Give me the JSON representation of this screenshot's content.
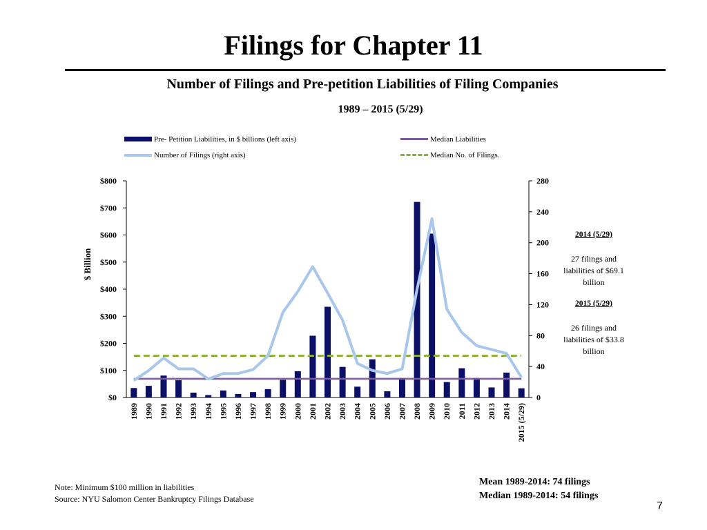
{
  "slide": {
    "title": "Filings for Chapter 11",
    "page_number": "7"
  },
  "legend": {
    "bars": "Pre- Petition Liabilities,  in $ billions  (left axis)",
    "filings": "Number of Filings  (right axis)",
    "median_liabilities": "Median Liabilities",
    "median_filings": "Median No. of Filings."
  },
  "notes": {
    "note": "Note:    Minimum $100 million in liabilities",
    "source": "Source: NYU Salomon Center Bankruptcy Filings Database"
  },
  "stats": {
    "mean": "Mean 1989-2014: 74 filings",
    "median": "Median 1989-2014: 54 filings"
  },
  "side_notes": {
    "head_2014": "2014 (5/29)",
    "body_2014": "27 filings and liabilities of $69.1 billion",
    "head_2015": "2015 (5/29)",
    "body_2015": "26 filings and liabilities of $33.8 billion"
  },
  "colors": {
    "bars": "#0b0f66",
    "filings_line": "#a8c7ea",
    "median_liabilities": "#7b5a9e",
    "median_filings": "#8db23c"
  },
  "chart_data": {
    "type": "bar",
    "title": "Number of Filings and Pre-petition Liabilities of Filing Companies",
    "subtitle": "1989 – 2015 (5/29)",
    "ylabel": "$ Billion",
    "ylabel_right": "",
    "ylim": [
      0,
      800
    ],
    "ylim_right": [
      0,
      280
    ],
    "yticks_left": [
      "$0",
      "$100",
      "$200",
      "$300",
      "$400",
      "$500",
      "$600",
      "$700",
      "$800"
    ],
    "yticks_right": [
      "0",
      "40",
      "80",
      "120",
      "160",
      "200",
      "240",
      "280"
    ],
    "categories": [
      "1989",
      "1990",
      "1991",
      "1992",
      "1993",
      "1994",
      "1995",
      "1996",
      "1997",
      "1998",
      "1999",
      "2000",
      "2001",
      "2002",
      "2003",
      "2004",
      "2005",
      "2006",
      "2007",
      "2008",
      "2009",
      "2010",
      "2011",
      "2012",
      "2013",
      "2014",
      "2015 (5/29)"
    ],
    "series": [
      {
        "name": "Pre- Petition Liabilities,  in $ billions  (left axis)",
        "kind": "bar",
        "axis": "left",
        "values": [
          35,
          43,
          81,
          64,
          18,
          9,
          26,
          13,
          20,
          31,
          65,
          97,
          228,
          335,
          113,
          40,
          141,
          23,
          72,
          722,
          605,
          57,
          108,
          72,
          37,
          92,
          34
        ]
      },
      {
        "name": "Number of Filings  (right axis)",
        "kind": "line",
        "axis": "right",
        "values": [
          22,
          35,
          51,
          37,
          37,
          24,
          31,
          31,
          36,
          54,
          110,
          137,
          169,
          135,
          100,
          44,
          35,
          31,
          37,
          140,
          231,
          114,
          84,
          67,
          62,
          57,
          26
        ]
      },
      {
        "name": "Median Liabilities",
        "kind": "hline",
        "axis": "left",
        "value": 69.1
      },
      {
        "name": "Median No. of Filings.",
        "kind": "hline",
        "axis": "right",
        "value": 54
      }
    ]
  }
}
